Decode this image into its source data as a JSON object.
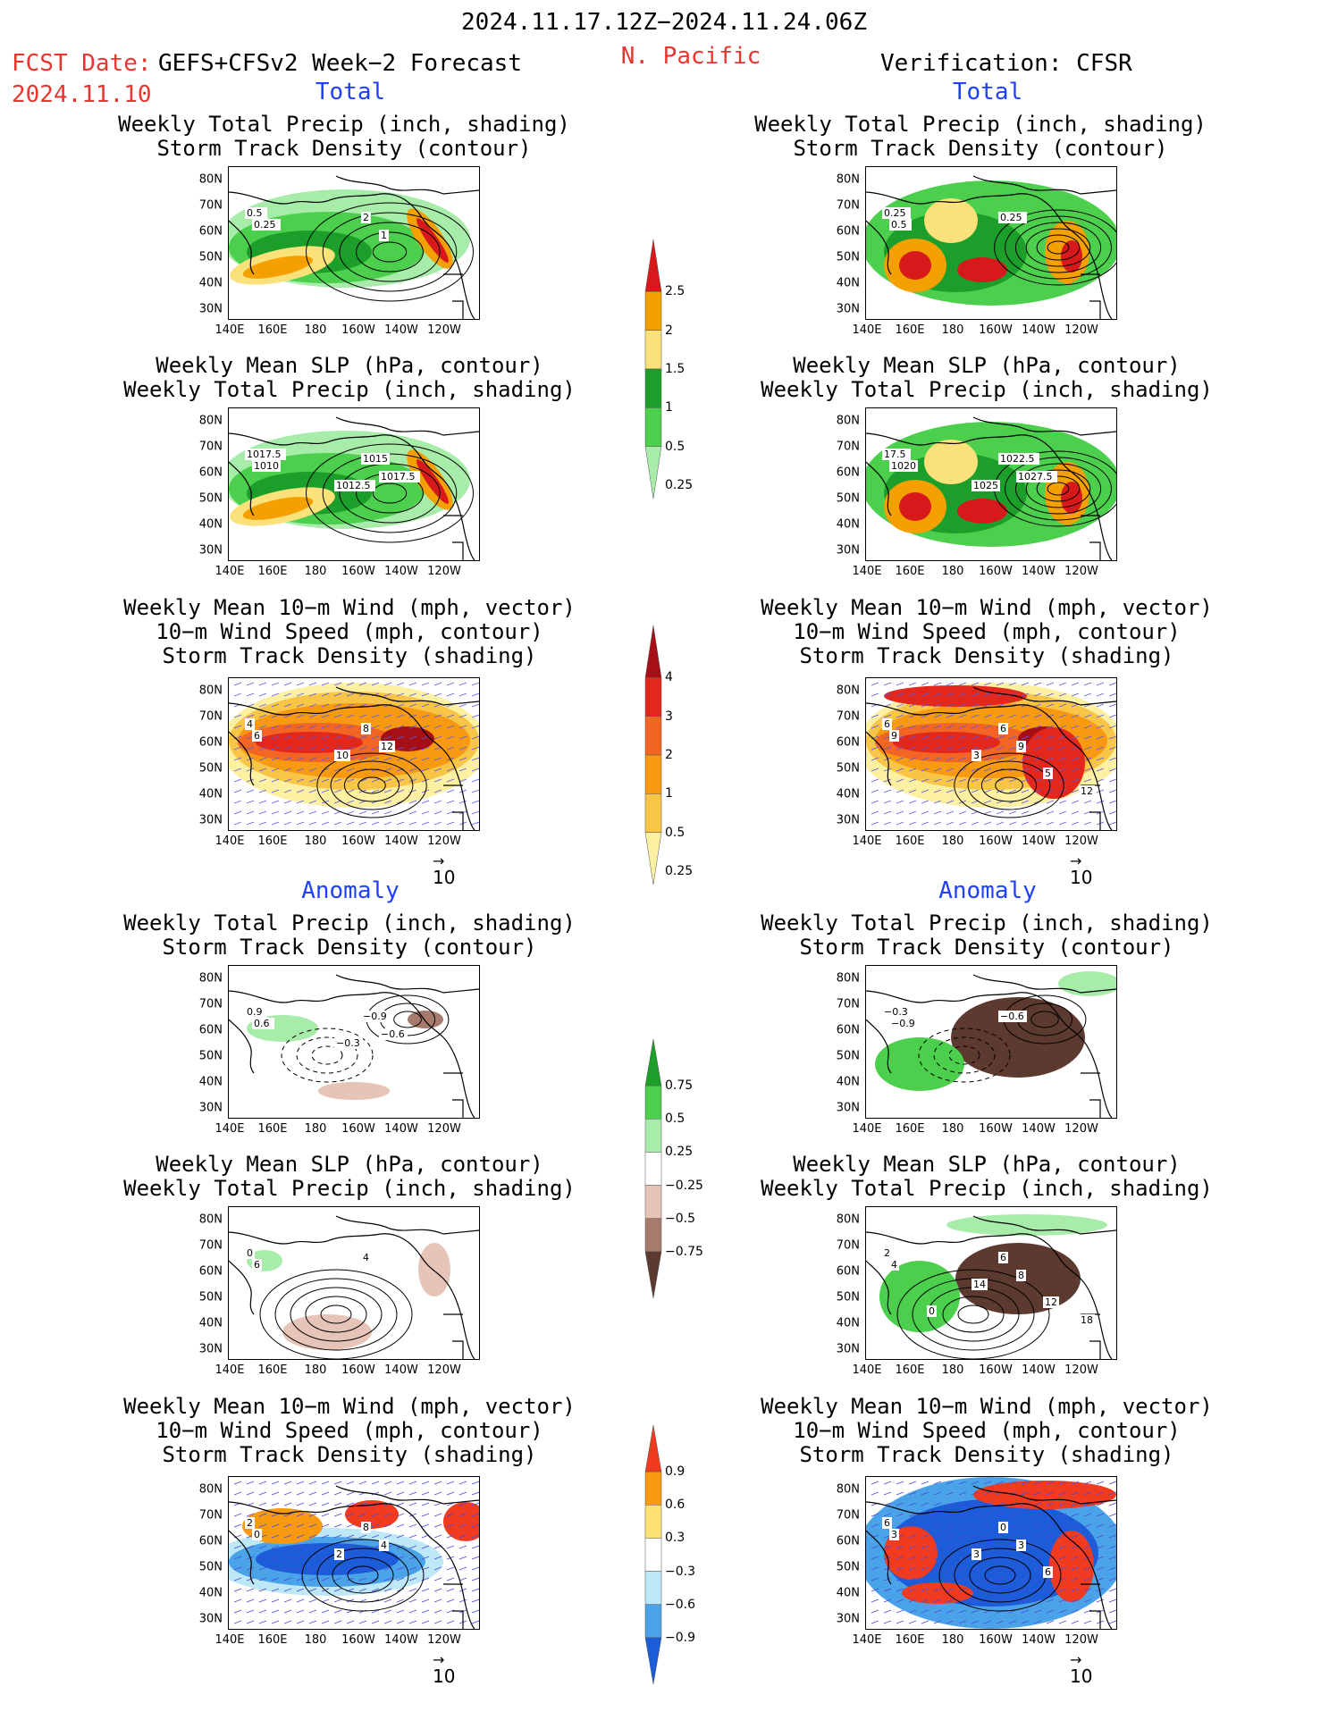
{
  "header": {
    "period": "2024.11.17.12Z−2024.11.24.06Z",
    "region": "N. Pacific",
    "fcst_label": "FCST Date:",
    "fcst_model": "GEFS+CFSv2 Week−2 Forecast",
    "fcst_date": "2024.11.10",
    "verification": "Verification: CFSR"
  },
  "sections": {
    "total": "Total",
    "anomaly": "Anomaly"
  },
  "titles": {
    "precip_storm": [
      "Weekly Total Precip (inch, shading)",
      "Storm Track Density (contour)"
    ],
    "slp_precip": [
      "Weekly Mean SLP (hPa, contour)",
      "Weekly Total Precip (inch, shading)"
    ],
    "wind_storm": [
      "Weekly Mean 10−m Wind (mph, vector)",
      "10−m Wind Speed (mph, contour)",
      "Storm Track Density (shading)"
    ]
  },
  "map_axes": {
    "lat_ticks": [
      "80N",
      "70N",
      "60N",
      "50N",
      "40N",
      "30N"
    ],
    "lon_ticks": [
      "140E",
      "160E",
      "180",
      "160W",
      "140W",
      "120W"
    ]
  },
  "vector_reference": "10",
  "colorbars": {
    "precip_total": {
      "labels": [
        "2.5",
        "2",
        "1.5",
        "1",
        "0.5",
        "0.25"
      ],
      "colors": [
        "#d7191c",
        "#f4a000",
        "#fbe17a",
        "#1b9e2a",
        "#4ccf4c",
        "#a8ecaa"
      ]
    },
    "storm_total": {
      "labels": [
        "4",
        "3",
        "2",
        "1",
        "0.5",
        "0.25"
      ],
      "colors": [
        "#a50f15",
        "#e3271c",
        "#f26522",
        "#f79a12",
        "#f9c547",
        "#fdf0a0"
      ]
    },
    "precip_anom": {
      "labels": [
        "0.75",
        "0.5",
        "0.25",
        "−0.25",
        "−0.5",
        "−0.75"
      ],
      "colors": [
        "#1b9e2a",
        "#4ccf4c",
        "#a8ecaa",
        "#ffffff",
        "#e6c4b8",
        "#a67b6e",
        "#5c3a30"
      ]
    },
    "storm_anom": {
      "labels": [
        "0.9",
        "0.6",
        "0.3",
        "−0.3",
        "−0.6",
        "−0.9"
      ],
      "colors": [
        "#f03b20",
        "#f79a12",
        "#fde172",
        "#ffffff",
        "#bde8f7",
        "#4aa3e8",
        "#1c5cd8"
      ]
    }
  },
  "contour_labels": {
    "fc_total_precip": [
      "0.5",
      "0.25",
      "2",
      "1"
    ],
    "ver_total_precip": [
      "0.25",
      "0.5",
      "0.25"
    ],
    "fc_total_slp": [
      "1017.5",
      "1010",
      "1015",
      "1017.5",
      "1012.5"
    ],
    "ver_total_slp": [
      "17.5",
      "1020",
      "1022.5",
      "1027.5",
      "1025"
    ],
    "fc_total_wind": [
      "4",
      "6",
      "8",
      "12",
      "10"
    ],
    "ver_total_wind": [
      "6",
      "9",
      "6",
      "9",
      "3",
      "5",
      "12"
    ],
    "fc_anom_precip": [
      "0.9",
      "0.6",
      "−0.9",
      "−0.6",
      "−0.3"
    ],
    "ver_anom_precip": [
      "−0.3",
      "−0.9",
      "−0.6"
    ],
    "fc_anom_slp": [
      "0",
      "6",
      "4"
    ],
    "ver_anom_slp": [
      "2",
      "4",
      "6",
      "8",
      "14",
      "12",
      "18",
      "0"
    ],
    "fc_anom_wind": [
      "2",
      "0",
      "8",
      "4",
      "2"
    ],
    "ver_anom_wind": [
      "6",
      "3",
      "0",
      "3",
      "3",
      "6"
    ]
  }
}
